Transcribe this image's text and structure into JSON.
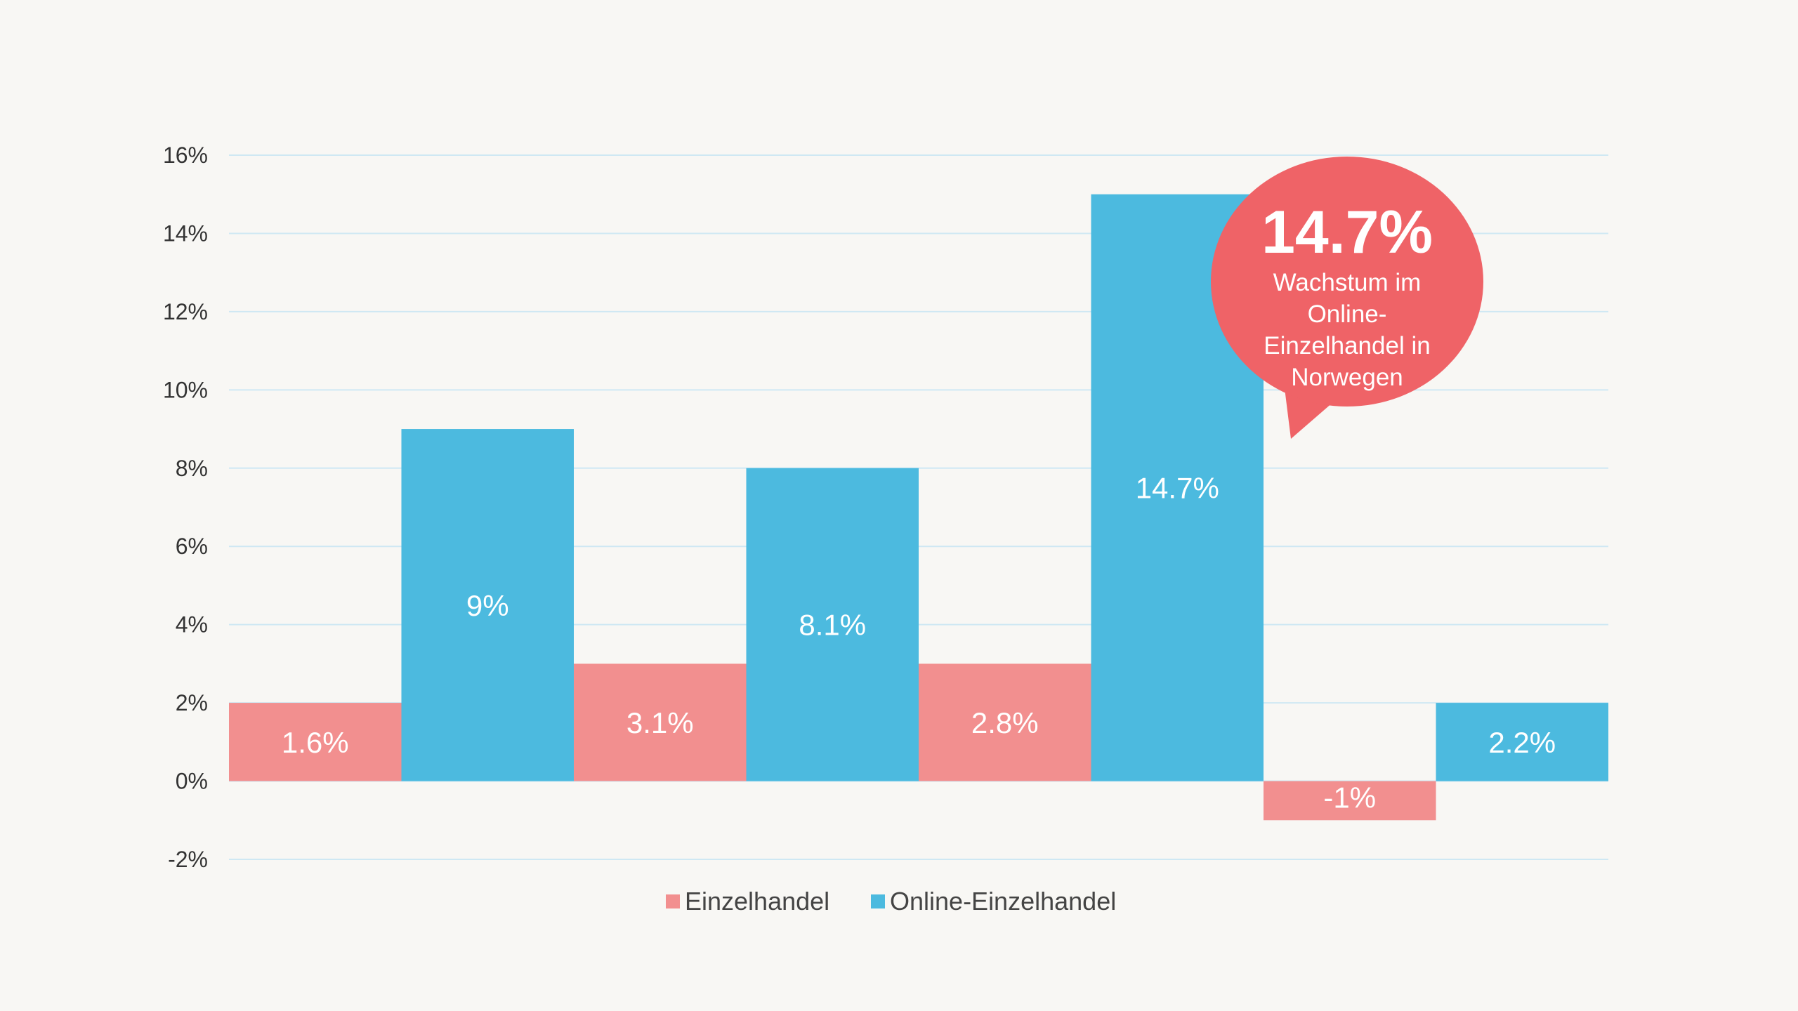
{
  "chart_data": {
    "type": "bar",
    "title": "",
    "xlabel": "",
    "ylabel": "",
    "ylim": [
      -2,
      16
    ],
    "yticks": [
      -2,
      0,
      2,
      4,
      6,
      8,
      10,
      12,
      14,
      16
    ],
    "tick_suffix": "%",
    "grid": true,
    "categories": [
      "",
      "",
      "",
      ""
    ],
    "series": [
      {
        "name": "Einzelhandel",
        "color": "#f28f8f",
        "values": [
          2,
          3,
          3,
          -1
        ],
        "labels": [
          "1.6%",
          "3.1%",
          "2.8%",
          "-1%"
        ]
      },
      {
        "name": "Online-Einzelhandel",
        "color": "#4cbadf",
        "values": [
          9,
          8,
          15,
          2
        ],
        "labels": [
          "9%",
          "8.1%",
          "14.7%",
          "2.2%"
        ]
      }
    ],
    "legend": {
      "position": "bottom-center"
    },
    "annotation": {
      "value": "14.7%",
      "lines": [
        "Wachstum im",
        "Online-",
        "Einzelhandel in",
        "Norwegen"
      ],
      "color": "#ef6367",
      "target_series": 1,
      "target_index": 2
    }
  }
}
